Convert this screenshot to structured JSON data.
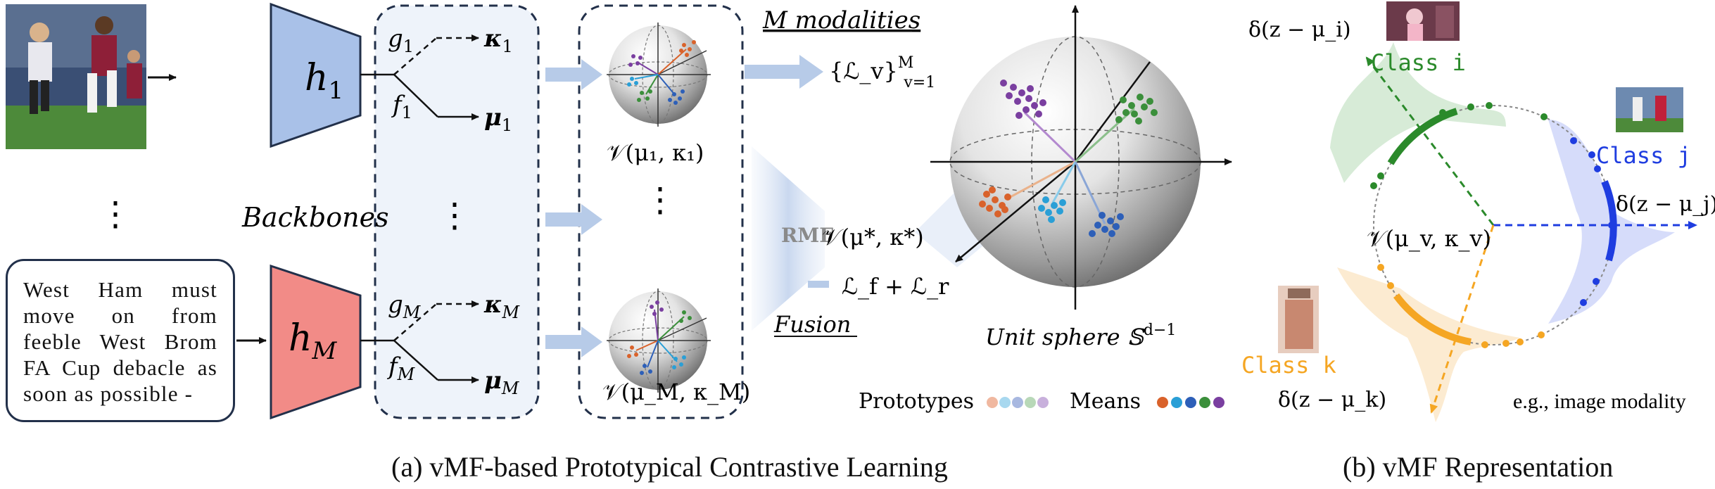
{
  "panel_a": {
    "caption": "(a) vMF-based Prototypical Contrastive Learning",
    "backbone_top": "h",
    "backbone_top_sub": "1",
    "backbone_bottom": "h",
    "backbone_bottom_sub": "M",
    "backbones_label": "Backbones",
    "text_input": "West Ham must move on from feeble West Brom FA Cup debacle as soon as possible -",
    "g_top": "g",
    "g_top_sub": "1",
    "f_top": "f",
    "f_top_sub": "1",
    "kappa_top": "κ",
    "kappa_top_sub": "1",
    "mu_top": "μ",
    "mu_top_sub": "1",
    "g_bottom": "g",
    "g_bottom_sub": "M",
    "f_bottom": "f",
    "f_bottom_sub": "M",
    "kappa_bottom": "κ",
    "kappa_bottom_sub": "M",
    "mu_bottom": "μ",
    "mu_bottom_sub": "M",
    "vmf_top": "𝒱(μ₁, κ₁)",
    "vmf_bottom": "𝒱(μ_M, κ_M)",
    "modalities_label": "M modalities",
    "loss_set": "{ℒ_v}",
    "loss_set_sup": "M",
    "loss_set_sub": "v=1",
    "rmf_label": "RMF",
    "vmf_fused": "𝒱(μ*, κ*)",
    "fusion_loss": "ℒ_f + ℒ_r",
    "fusion_label": "Fusion",
    "sphere_label": "Unit sphere 𝕊",
    "sphere_sup": "d−1",
    "prototypes_label": "Prototypes",
    "means_label": "Means",
    "dots": "⋮"
  },
  "panel_b": {
    "caption": "(b) vMF Representation",
    "class_i": "Class i",
    "class_j": "Class j",
    "class_k": "Class k",
    "delta_i": "δ(z − μ_i)",
    "delta_j": "δ(z − μ_j)",
    "delta_k": "δ(z − μ_k)",
    "vmf_v": "𝒱(μ_v, κ_v)",
    "example_note": "e.g., image modality"
  },
  "colors": {
    "backbone_top": "#a9c1e8",
    "backbone_bottom": "#f28b87",
    "dashed_panel": "#eef3fa",
    "flow_arrow": "#b7cbe8",
    "class_i": "#2b8a2b",
    "class_j": "#1f3de0",
    "class_k": "#f5a623",
    "means": [
      "#d9622b",
      "#2a9fd6",
      "#2d5fb8",
      "#3b8f3b",
      "#7a3fa0"
    ]
  }
}
